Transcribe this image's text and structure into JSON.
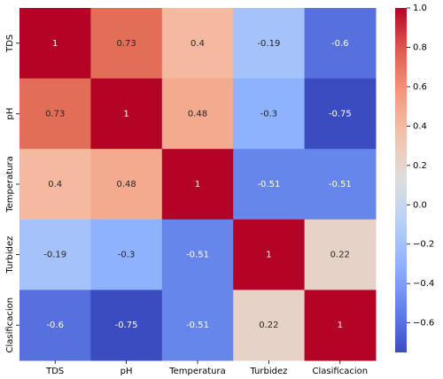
{
  "chart_data": {
    "type": "heatmap",
    "title": "",
    "xlabel": "",
    "ylabel": "",
    "row_labels": [
      "TDS",
      "pH",
      "Temperatura",
      "Turbidez",
      "Clasificacion"
    ],
    "col_labels": [
      "TDS",
      "pH",
      "Temperatura",
      "Turbidez",
      "Clasificacion"
    ],
    "values": [
      [
        1,
        0.73,
        0.4,
        -0.19,
        -0.6
      ],
      [
        0.73,
        1,
        0.48,
        -0.3,
        -0.75
      ],
      [
        0.4,
        0.48,
        1,
        -0.51,
        -0.51
      ],
      [
        -0.19,
        -0.3,
        -0.51,
        1,
        0.22
      ],
      [
        -0.6,
        -0.75,
        -0.51,
        0.22,
        1
      ]
    ],
    "cell_labels": [
      [
        "1",
        "0.73",
        "0.4",
        "-0.19",
        "-0.6"
      ],
      [
        "0.73",
        "1",
        "0.48",
        "-0.3",
        "-0.75"
      ],
      [
        "0.4",
        "0.48",
        "1",
        "-0.51",
        "-0.51"
      ],
      [
        "-0.19",
        "-0.3",
        "-0.51",
        "1",
        "0.22"
      ],
      [
        "-0.6",
        "-0.75",
        "-0.51",
        "0.22",
        "1"
      ]
    ],
    "colormap": "coolwarm",
    "vmin": -0.75,
    "vmax": 1.0,
    "colorbar_ticks": [
      1.0,
      0.8,
      0.6,
      0.4,
      0.2,
      0.0,
      -0.2,
      -0.4,
      -0.6
    ],
    "colorbar_tick_labels": [
      "1.0",
      "0.8",
      "0.6",
      "0.4",
      "0.2",
      "0.0",
      "−0.2",
      "−0.4",
      "−0.6"
    ]
  }
}
